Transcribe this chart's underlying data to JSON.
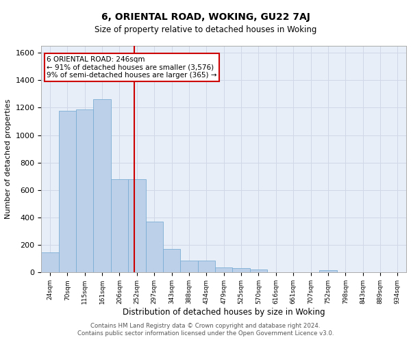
{
  "title": "6, ORIENTAL ROAD, WOKING, GU22 7AJ",
  "subtitle": "Size of property relative to detached houses in Woking",
  "xlabel": "Distribution of detached houses by size in Woking",
  "ylabel": "Number of detached properties",
  "categories": [
    "24sqm",
    "70sqm",
    "115sqm",
    "161sqm",
    "206sqm",
    "252sqm",
    "297sqm",
    "343sqm",
    "388sqm",
    "434sqm",
    "479sqm",
    "525sqm",
    "570sqm",
    "616sqm",
    "661sqm",
    "707sqm",
    "752sqm",
    "798sqm",
    "843sqm",
    "889sqm",
    "934sqm"
  ],
  "values": [
    148,
    1175,
    1185,
    1260,
    680,
    680,
    370,
    170,
    85,
    85,
    38,
    30,
    20,
    0,
    0,
    0,
    15,
    0,
    0,
    0,
    0
  ],
  "bar_color": "#bdd0e9",
  "bar_edge_color": "#7aadd4",
  "property_label": "6 ORIENTAL ROAD: 246sqm",
  "annotation_line1": "← 91% of detached houses are smaller (3,576)",
  "annotation_line2": "9% of semi-detached houses are larger (365) →",
  "annotation_box_color": "#ffffff",
  "annotation_box_edge": "#cc0000",
  "vline_color": "#cc0000",
  "vline_x": 4.85,
  "ylim": [
    0,
    1650
  ],
  "yticks": [
    0,
    200,
    400,
    600,
    800,
    1000,
    1200,
    1400,
    1600
  ],
  "grid_color": "#d0d8e8",
  "bg_color": "#e8eef8",
  "footer1": "Contains HM Land Registry data © Crown copyright and database right 2024.",
  "footer2": "Contains public sector information licensed under the Open Government Licence v3.0."
}
